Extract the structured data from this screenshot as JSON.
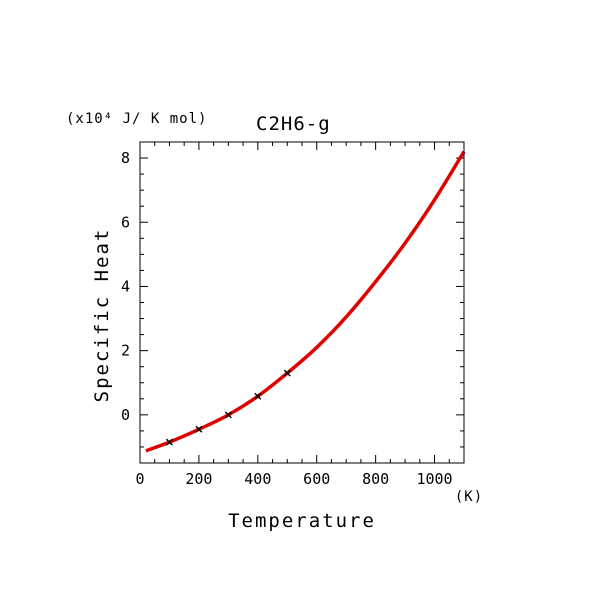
{
  "chart_data": {
    "type": "line",
    "title": "C2H6-g",
    "unit_label": "(x10⁴ J/ K mol)",
    "xlabel": "Temperature",
    "xunit": "(K)",
    "ylabel": "Specific Heat",
    "xlim": [
      0,
      1100
    ],
    "ylim": [
      -1.5,
      8.5
    ],
    "x_ticks": [
      0,
      200,
      400,
      600,
      800,
      1000
    ],
    "y_ticks": [
      0,
      2,
      4,
      6,
      8
    ],
    "grid": false,
    "series": [
      {
        "kind": "line",
        "color": "#e00000",
        "x": [
          20,
          100,
          200,
          300,
          400,
          500,
          600,
          700,
          800,
          900,
          1000,
          1100
        ],
        "y": [
          -1.12,
          -0.85,
          -0.45,
          0.0,
          0.58,
          1.3,
          2.1,
          3.05,
          4.15,
          5.35,
          6.7,
          8.2
        ]
      },
      {
        "kind": "markers",
        "marker": "x",
        "color": "#000000",
        "x": [
          100,
          200,
          300,
          400,
          500
        ],
        "y": [
          -0.85,
          -0.45,
          0.0,
          0.58,
          1.3
        ]
      }
    ]
  }
}
